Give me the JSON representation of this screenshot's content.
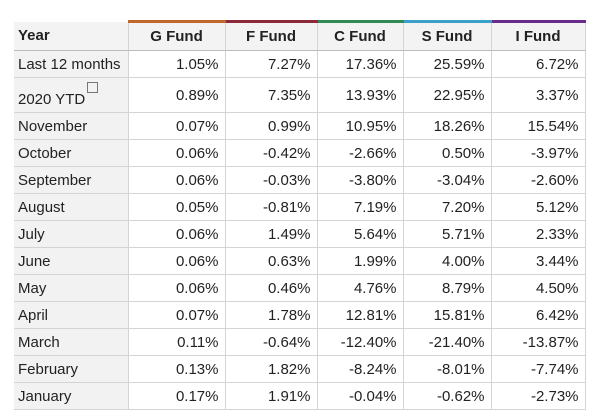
{
  "table": {
    "columns": [
      {
        "label": "Year",
        "color": ""
      },
      {
        "label": "G Fund",
        "color": "#c2672b"
      },
      {
        "label": "F Fund",
        "color": "#8b2a3b"
      },
      {
        "label": "C Fund",
        "color": "#2f8a54"
      },
      {
        "label": "S Fund",
        "color": "#3aa0c9"
      },
      {
        "label": "I Fund",
        "color": "#6a2c8c"
      }
    ],
    "rows": [
      {
        "label": "Last 12 months",
        "values": [
          "1.05%",
          "7.27%",
          "17.36%",
          "25.59%",
          "6.72%"
        ]
      },
      {
        "label": "2020 YTD",
        "values": [
          "0.89%",
          "7.35%",
          "13.93%",
          "22.95%",
          "3.37%"
        ]
      },
      {
        "label": "November",
        "values": [
          "0.07%",
          "0.99%",
          "10.95%",
          "18.26%",
          "15.54%"
        ]
      },
      {
        "label": "October",
        "values": [
          "0.06%",
          "-0.42%",
          "-2.66%",
          "0.50%",
          "-3.97%"
        ]
      },
      {
        "label": "September",
        "values": [
          "0.06%",
          "-0.03%",
          "-3.80%",
          "-3.04%",
          "-2.60%"
        ]
      },
      {
        "label": "August",
        "values": [
          "0.05%",
          "-0.81%",
          "7.19%",
          "7.20%",
          "5.12%"
        ]
      },
      {
        "label": "July",
        "values": [
          "0.06%",
          "1.49%",
          "5.64%",
          "5.71%",
          "2.33%"
        ]
      },
      {
        "label": "June",
        "values": [
          "0.06%",
          "0.63%",
          "1.99%",
          "4.00%",
          "3.44%"
        ]
      },
      {
        "label": "May",
        "values": [
          "0.06%",
          "0.46%",
          "4.76%",
          "8.79%",
          "4.50%"
        ]
      },
      {
        "label": "April",
        "values": [
          "0.07%",
          "1.78%",
          "12.81%",
          "15.81%",
          "6.42%"
        ]
      },
      {
        "label": "March",
        "values": [
          "0.11%",
          "-0.64%",
          "-12.40%",
          "-21.40%",
          "-13.87%"
        ]
      },
      {
        "label": "February",
        "values": [
          "0.13%",
          "1.82%",
          "-8.24%",
          "-8.01%",
          "-7.74%"
        ]
      },
      {
        "label": "January",
        "values": [
          "0.17%",
          "1.91%",
          "-0.04%",
          "-0.62%",
          "-2.73%"
        ]
      }
    ]
  }
}
